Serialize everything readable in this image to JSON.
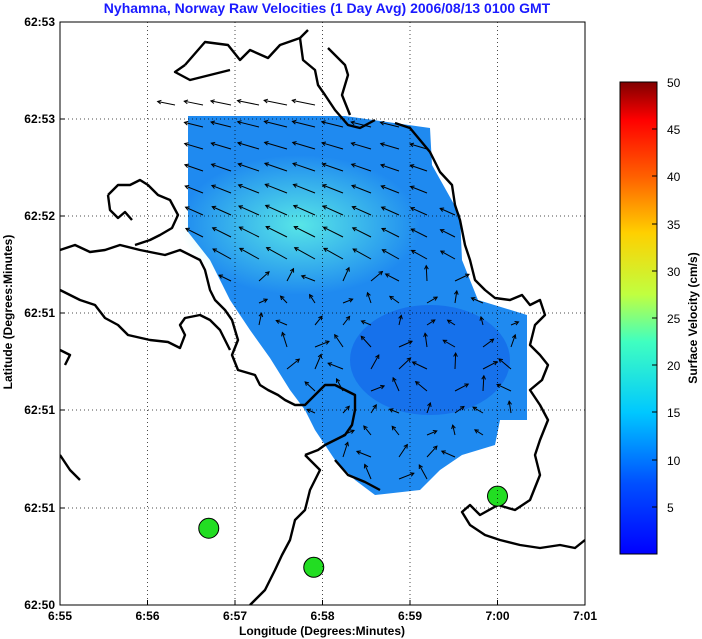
{
  "chart_data": {
    "type": "heatmap",
    "title": "Nyhamna, Norway Raw Velocities (1 Day Avg) 2006/08/13 0100 GMT",
    "xlabel": "Longitude (Degrees:Minutes)",
    "ylabel": "Latitude (Degrees:Minutes)",
    "x_ticks": [
      "6:55",
      "6:56",
      "6:57",
      "6:58",
      "6:59",
      "7:00",
      "7:01"
    ],
    "y_ticks": [
      "62:53",
      "62:53",
      "62:52",
      "62:51",
      "62:51",
      "62:51",
      "62:50"
    ],
    "grid": true,
    "colorbar": {
      "label": "Surface Velocity (cm/s)",
      "ticks": [
        "50",
        "45",
        "40",
        "35",
        "30",
        "25",
        "20",
        "15",
        "10",
        "5"
      ],
      "range": [
        0,
        50
      ],
      "colormap": "jet"
    },
    "stations": [
      {
        "lon": 6.945,
        "lat": 62.8465
      },
      {
        "lon": 6.965,
        "lat": 62.8398
      },
      {
        "lon": 7.0,
        "lat": 62.852
      }
    ],
    "station_color": "#22dd22"
  }
}
